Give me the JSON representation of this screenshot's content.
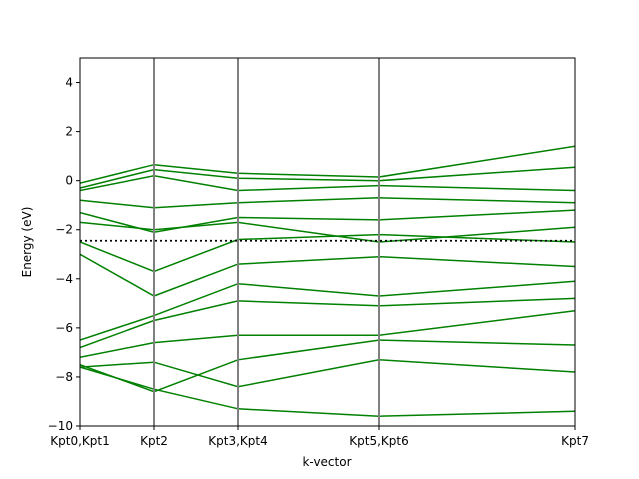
{
  "chart_data": {
    "type": "line",
    "xlabel": "k-vector",
    "ylabel": "Energy (eV)",
    "ylim": [
      -10,
      5
    ],
    "y_ticks": [
      4,
      2,
      0,
      -2,
      -4,
      -6,
      -8,
      -10
    ],
    "y_tick_labels": [
      "4",
      "2",
      "0",
      "−2",
      "−4",
      "−6",
      "−8",
      "−10"
    ],
    "x_points": [
      0,
      1,
      2,
      3,
      4
    ],
    "x_tick_labels": [
      "Kpt0,Kpt1",
      "Kpt2",
      "Kpt3,Kpt4",
      "Kpt5,Kpt6",
      "Kpt7"
    ],
    "segment_boundaries": [
      1,
      2,
      3
    ],
    "fermi_level": -2.45,
    "band_color": "#008000",
    "boundary_color": "#808080",
    "series": [
      {
        "values": [
          -0.1,
          0.65,
          0.3,
          0.15,
          1.4
        ]
      },
      {
        "values": [
          -0.3,
          0.45,
          0.1,
          0.0,
          0.55
        ]
      },
      {
        "values": [
          -0.4,
          0.2,
          -0.4,
          -0.2,
          -0.4
        ]
      },
      {
        "values": [
          -0.8,
          -1.1,
          -0.9,
          -0.7,
          -0.9
        ]
      },
      {
        "values": [
          -1.3,
          -2.1,
          -1.5,
          -1.6,
          -1.2
        ]
      },
      {
        "values": [
          -1.7,
          -2.0,
          -1.7,
          -2.5,
          -1.9
        ]
      },
      {
        "values": [
          -2.5,
          -3.7,
          -2.4,
          -2.2,
          -2.5
        ]
      },
      {
        "values": [
          -3.0,
          -4.7,
          -3.4,
          -3.1,
          -3.5
        ]
      },
      {
        "values": [
          -6.5,
          -5.5,
          -4.2,
          -4.7,
          -4.1
        ]
      },
      {
        "values": [
          -6.8,
          -5.7,
          -4.9,
          -5.1,
          -4.8
        ]
      },
      {
        "values": [
          -7.2,
          -6.6,
          -6.3,
          -6.3,
          -5.3
        ]
      },
      {
        "values": [
          -7.5,
          -8.6,
          -7.3,
          -6.5,
          -6.7
        ]
      },
      {
        "values": [
          -7.6,
          -7.4,
          -8.4,
          -7.3,
          -7.8
        ]
      },
      {
        "values": [
          -7.6,
          -8.5,
          -9.3,
          -9.6,
          -9.4
        ]
      }
    ]
  }
}
